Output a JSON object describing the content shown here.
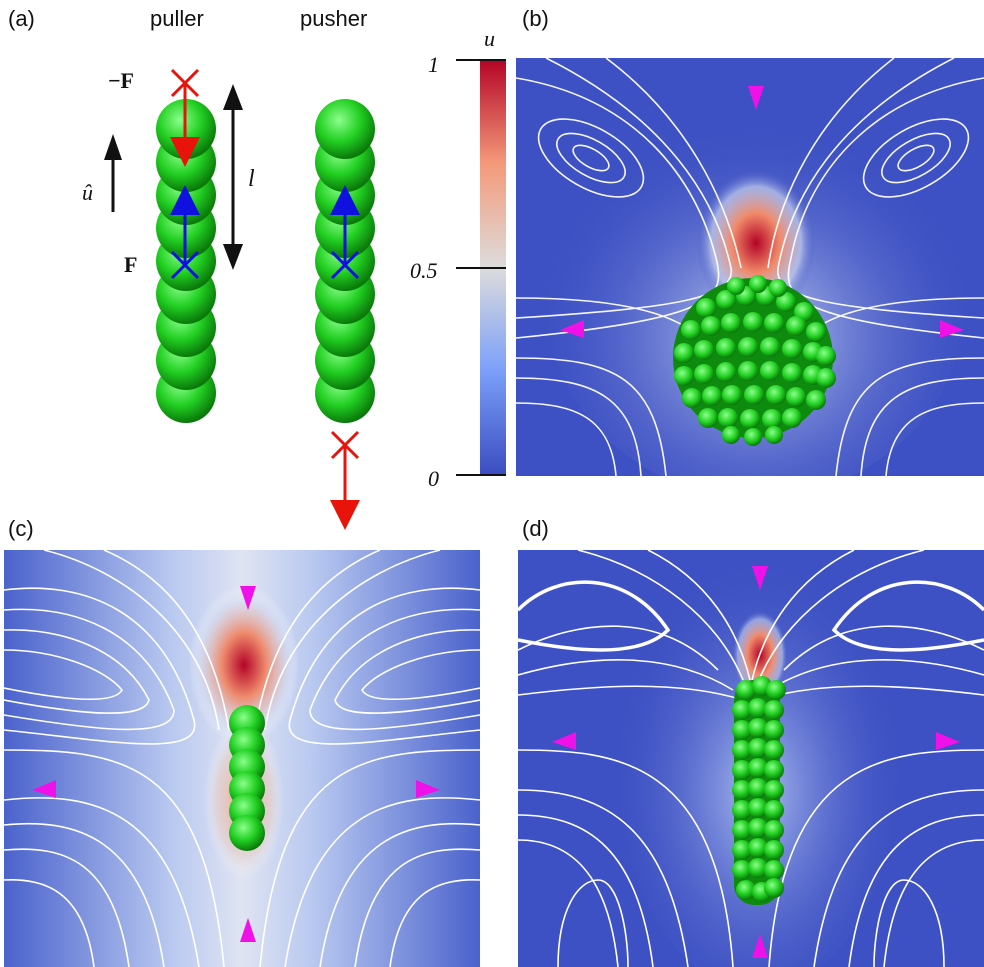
{
  "panels": {
    "a": {
      "label": "(a)",
      "puller": "puller",
      "pusher": "pusher",
      "force_neg": "−F",
      "force_pos": "F",
      "length": "l",
      "direction": "û"
    },
    "b": {
      "label": "(b)"
    },
    "c": {
      "label": "(c)"
    },
    "d": {
      "label": "(d)"
    }
  },
  "colorbar": {
    "title": "u",
    "tick_top": "1",
    "tick_mid": "0.5",
    "tick_bottom": "0"
  },
  "colors": {
    "sphere": "#22d022",
    "arrow_force": "#e8140c",
    "arrow_dir": "#1010e0",
    "arrowhead_flow": "#f010e8",
    "field_low": "#3b4cc0",
    "field_high": "#b40426"
  }
}
